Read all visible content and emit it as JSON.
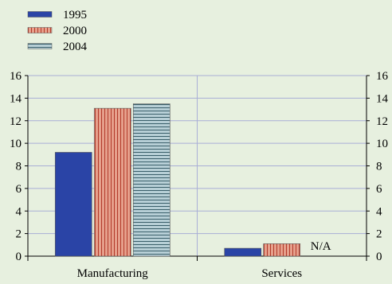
{
  "chart_data": {
    "type": "bar",
    "title": "",
    "xlabel": "",
    "ylabel": "",
    "categories": [
      "Manufacturing",
      "Services"
    ],
    "series": [
      {
        "name": "1995",
        "values": [
          9.2,
          0.7
        ],
        "color": "#2a44a6",
        "pattern": "solid"
      },
      {
        "name": "2000",
        "values": [
          13.1,
          1.1
        ],
        "color": "#e6a08c",
        "pattern": "vertical-stripes"
      },
      {
        "name": "2004",
        "values": [
          13.5,
          null
        ],
        "color": "#b7cfd6",
        "pattern": "horizontal-stripes"
      }
    ],
    "ylim": [
      0,
      16
    ],
    "yticks": [
      0,
      2,
      4,
      6,
      8,
      10,
      12,
      14,
      16
    ],
    "secondary_y_axis_mirrored": true,
    "grid": true,
    "legend_position": "top-left",
    "annotations": [
      {
        "category": "Services",
        "series": "2004",
        "text": "N/A"
      }
    ]
  }
}
